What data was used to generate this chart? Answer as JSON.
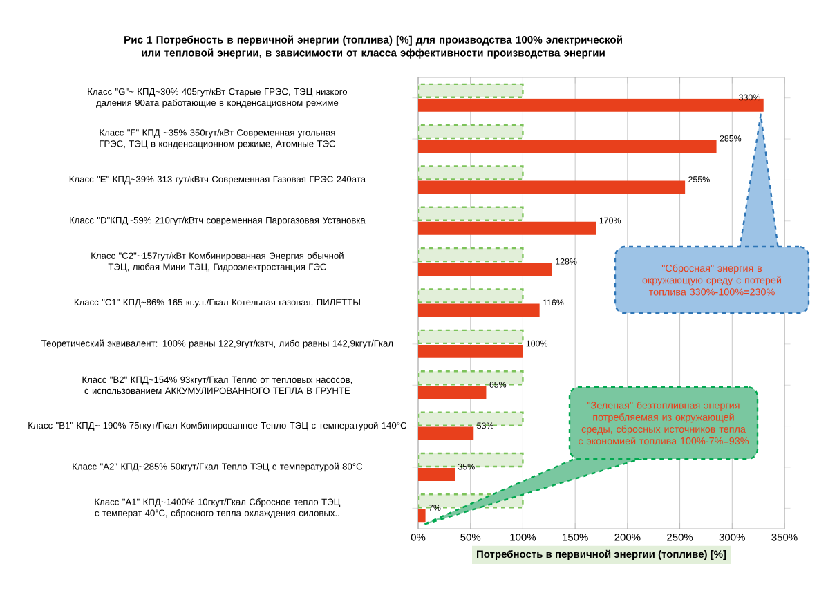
{
  "chart_data": {
    "type": "bar",
    "orientation": "horizontal",
    "title": "Рис 1 Потребность в первичной энергии (топлива) [%] для производства 100% электрической или тепловой энергии, в зависимости от класса эффективности производства энергии",
    "xlabel": "Потребность в первичной энергии (топливе) [%]",
    "categories": [
      "Класс \"G\"~ КПД~30% 405гут/кВт Старые ГРЭС, ТЭЦ низкого даления 90ата работающие в конденсациовном режиме",
      "Класс \"F\" КПД ~35% 350гут/кВт Современная угольная ГРЭС, ТЭЦ в конденсационном режиме, Атомные ТЭС",
      "Класс \"E\" КПД~39% 313 гут/кВтч Современная Газовая ГРЭС 240ата",
      "Класс \"D\"КПД~59% 210гут/кВтч современная Парогазовая Установка",
      "Класс \"C2\"~157гут/кВт Комбинированная Энергия обычной ТЭЦ, любая Мини ТЭЦ, Гидроэлектростанция ГЭС",
      "Класс \"C1\" КПД~86% 165 кг.у.т./Гкал Котельная газовая, ПИЛЕТТЫ",
      "Теоретический эквивалент: 100% равны 122,9гут/квтч, либо равны 142,9кгут/Гкал",
      "Класс \"B2\" КПД~154% 93кгут/Гкал Тепло от тепловых насосов, с использованием АККУМУЛИРОВАННОГО ТЕПЛА В ГРУНТЕ",
      "Класс \"B1\" КПД~ 190% 75гкут/Гкал Комбинированное Тепло ТЭЦ с температурой 140°С",
      "Класс \"A2\" КПД~285% 50кгут/Гкал Тепло ТЭЦ с температурой 80°С",
      "Класс \"A1\" КПД~1400% 10гкут/Гкал Сбросное тепло ТЭЦ с температ 40°С, сбросного тепла охлаждения силовых.."
    ],
    "series": [
      {
        "color": "#e2efd9",
        "values": [
          100,
          100,
          100,
          100,
          100,
          100,
          100,
          100,
          100,
          100,
          100
        ]
      },
      {
        "color": "#e8401c",
        "values": [
          330,
          285,
          255,
          170,
          128,
          116,
          100,
          65,
          53,
          35,
          7
        ],
        "value_labels": [
          "330%",
          "285%",
          "255%",
          "170%",
          "128%",
          "116%",
          "100%",
          "65%",
          "53%",
          "35%",
          "7%"
        ]
      }
    ],
    "xlim": [
      0,
      350
    ],
    "xticks": [
      {
        "value": 0,
        "label": "0%"
      },
      {
        "value": 50,
        "label": "50%"
      },
      {
        "value": 100,
        "label": "100%"
      },
      {
        "value": 150,
        "label": "150%"
      },
      {
        "value": 200,
        "label": "200%"
      },
      {
        "value": 250,
        "label": "250%"
      },
      {
        "value": 300,
        "label": "300%"
      },
      {
        "value": 350,
        "label": "350%"
      }
    ],
    "grid": "x",
    "annotations": [
      "\"Сбросная\" энергия в окружающую среду с потерей топлива 330%-100%=230%",
      "\"Зеленая\" безтопливная энергия потребляемая из окружающей среды, сбросных источников тепла с экономией топлива 100%-7%=93%"
    ]
  }
}
